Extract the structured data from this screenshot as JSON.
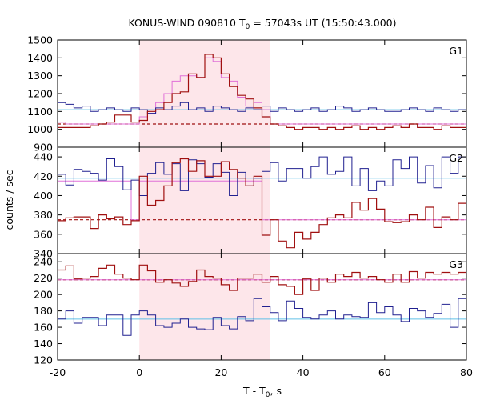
{
  "chart_data": {
    "type": "line",
    "title": "KONUS-WIND 090810 T",
    "title_sub": "0",
    "title_rest": " = 57043s UT (15:50:43.000)",
    "xlabel": "T - T",
    "xlabel_sub": "0",
    "xlabel_rest": ", s",
    "ylabel": "counts / sec",
    "xlim": [
      -20,
      80
    ],
    "xticks": [
      "-20",
      "0",
      "20",
      "40",
      "60",
      "80"
    ],
    "xtick_values": [
      -20,
      0,
      20,
      40,
      60,
      80
    ],
    "shaded_interval": [
      0,
      32
    ],
    "shade_color": "#fde6ea",
    "bin_width": 2,
    "bin_start": -20,
    "colors": {
      "red_series": "#a01010",
      "blue_series": "#202090",
      "pink_line": "#e070d8",
      "cyan_line": "#60c0e8"
    },
    "panels": [
      {
        "label": "G1",
        "ylim": [
          900,
          1500
        ],
        "yticks": [
          "900",
          "1000",
          "1100",
          "1200",
          "1300",
          "1400",
          "1500"
        ],
        "ytick_values": [
          900,
          1000,
          1100,
          1200,
          1300,
          1400,
          1500
        ],
        "red": [
          1010,
          1010,
          1010,
          1010,
          1020,
          1030,
          1040,
          1080,
          1080,
          1040,
          1050,
          1100,
          1110,
          1150,
          1200,
          1210,
          1310,
          1290,
          1420,
          1400,
          1310,
          1240,
          1190,
          1170,
          1120,
          1070,
          1030,
          1020,
          1010,
          1000,
          1010,
          1010,
          1000,
          1010,
          1000,
          1010,
          1020,
          1000,
          1010,
          1000,
          1010,
          1020,
          1010,
          1030,
          1010,
          1010,
          1000,
          1020,
          1010,
          1010
        ],
        "red_bg": 1030,
        "pink": [
          1040,
          1030,
          1030,
          1030,
          1030,
          1030,
          1030,
          1030,
          1030,
          1030,
          1070,
          1090,
          1150,
          1200,
          1270,
          1300,
          1300,
          1290,
          1400,
          1380,
          1290,
          1270,
          1180,
          1130,
          1150,
          1110,
          1030,
          1030,
          1030,
          1030,
          1030,
          1030,
          1030,
          1030,
          1030,
          1030,
          1030,
          1030,
          1030,
          1030,
          1030,
          1030,
          1030,
          1030,
          1030,
          1030,
          1030,
          1030,
          1030,
          1030
        ],
        "blue": [
          1150,
          1140,
          1120,
          1130,
          1100,
          1110,
          1120,
          1110,
          1100,
          1120,
          1110,
          1090,
          1120,
          1110,
          1130,
          1150,
          1110,
          1120,
          1100,
          1130,
          1120,
          1110,
          1100,
          1120,
          1110,
          1130,
          1100,
          1120,
          1110,
          1100,
          1110,
          1120,
          1100,
          1110,
          1130,
          1120,
          1100,
          1110,
          1120,
          1110,
          1100,
          1100,
          1110,
          1120,
          1110,
          1100,
          1120,
          1110,
          1100,
          1110
        ],
        "cyan_bg": 1110
      },
      {
        "label": "G2",
        "ylim": [
          340,
          450
        ],
        "yticks": [
          "340",
          "360",
          "380",
          "400",
          "420",
          "440"
        ],
        "ytick_values": [
          340,
          360,
          380,
          400,
          420,
          440
        ],
        "red": [
          374,
          377,
          378,
          378,
          366,
          380,
          376,
          378,
          370,
          374,
          420,
          390,
          395,
          410,
          434,
          438,
          425,
          436,
          420,
          420,
          435,
          427,
          418,
          410,
          420,
          359,
          375,
          353,
          346,
          362,
          355,
          362,
          370,
          377,
          380,
          377,
          393,
          385,
          397,
          386,
          373,
          372,
          373,
          380,
          375,
          388,
          367,
          378,
          375,
          392
        ],
        "red_bg": 375,
        "pink": [
          415,
          415,
          415,
          415,
          415,
          415,
          415,
          415,
          415,
          375,
          415,
          415,
          415,
          415,
          415,
          415,
          415,
          415,
          415,
          415,
          415,
          415,
          415,
          415,
          415,
          375,
          375,
          375,
          375,
          375,
          375,
          375,
          375,
          375,
          375,
          375,
          375,
          375,
          375,
          375,
          375,
          375,
          375,
          375,
          375,
          375,
          375,
          375,
          375,
          375
        ],
        "blue": [
          422,
          411,
          427,
          425,
          423,
          416,
          438,
          430,
          406,
          416,
          400,
          423,
          434,
          422,
          433,
          405,
          437,
          433,
          419,
          433,
          424,
          400,
          424,
          410,
          418,
          425,
          434,
          415,
          428,
          428,
          418,
          430,
          440,
          422,
          425,
          440,
          410,
          428,
          405,
          415,
          410,
          437,
          428,
          440,
          413,
          431,
          408,
          440,
          423,
          440
        ],
        "cyan_bg": 418
      },
      {
        "label": "G3",
        "ylim": [
          120,
          250
        ],
        "yticks": [
          "120",
          "140",
          "160",
          "180",
          "200",
          "220",
          "240"
        ],
        "ytick_values": [
          120,
          140,
          160,
          180,
          200,
          220,
          240
        ],
        "red": [
          230,
          235,
          219,
          220,
          222,
          232,
          236,
          225,
          220,
          218,
          236,
          229,
          215,
          218,
          214,
          210,
          216,
          230,
          222,
          220,
          212,
          205,
          220,
          220,
          225,
          215,
          222,
          212,
          210,
          200,
          219,
          205,
          220,
          215,
          225,
          222,
          227,
          220,
          222,
          218,
          215,
          225,
          215,
          228,
          220,
          227,
          225,
          227,
          225,
          227
        ],
        "red_bg": 218,
        "pink": [
          218,
          218,
          218,
          218,
          218,
          218,
          218,
          218,
          218,
          218,
          218,
          218,
          218,
          218,
          218,
          218,
          218,
          218,
          218,
          218,
          218,
          218,
          218,
          218,
          218,
          218,
          218,
          218,
          218,
          218,
          218,
          218,
          218,
          218,
          218,
          218,
          218,
          218,
          218,
          218,
          218,
          218,
          218,
          218,
          218,
          218,
          218,
          218,
          218,
          218
        ],
        "blue": [
          170,
          180,
          165,
          172,
          172,
          162,
          175,
          175,
          150,
          175,
          180,
          175,
          162,
          160,
          165,
          170,
          160,
          158,
          157,
          172,
          162,
          158,
          173,
          168,
          195,
          185,
          178,
          168,
          192,
          183,
          172,
          170,
          175,
          180,
          170,
          175,
          173,
          172,
          190,
          178,
          185,
          175,
          167,
          183,
          180,
          172,
          177,
          188,
          160,
          195
        ],
        "cyan_bg": 170
      }
    ]
  }
}
